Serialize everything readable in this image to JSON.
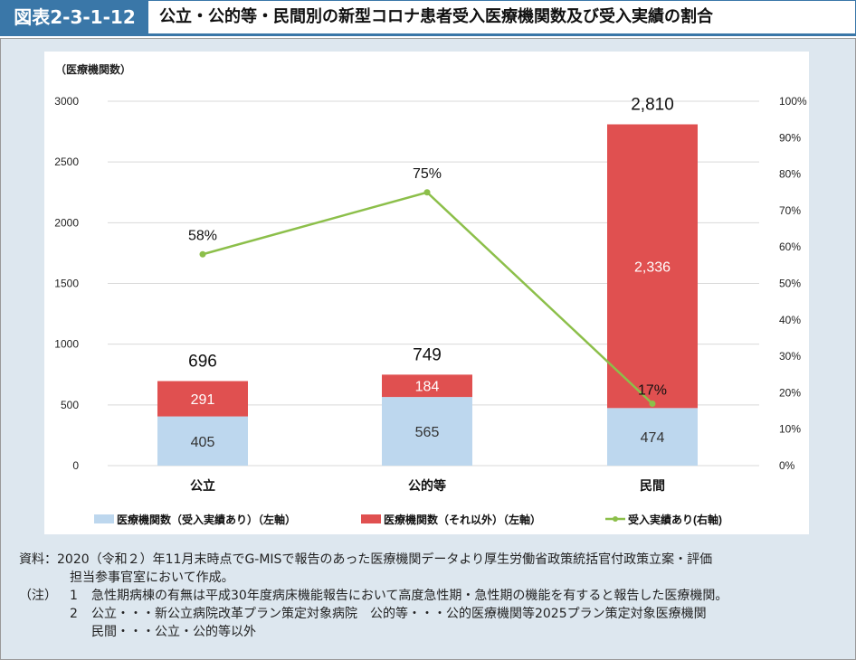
{
  "header": {
    "figure_number": "図表2-3-1-12",
    "title": "公立・公的等・民間別の新型コロナ患者受入医療機関数及び受入実績の割合"
  },
  "chart_data": {
    "type": "bar",
    "stacked": true,
    "ylabel": "（医療機関数）",
    "categories": [
      "公立",
      "公的等",
      "民間"
    ],
    "ylim": [
      0,
      3000
    ],
    "yticks": [
      "0",
      "500",
      "1000",
      "1500",
      "2000",
      "2500",
      "3000"
    ],
    "y2lim": [
      0,
      100
    ],
    "y2ticks": [
      "0%",
      "10%",
      "20%",
      "30%",
      "40%",
      "50%",
      "60%",
      "70%",
      "80%",
      "90%",
      "100%"
    ],
    "series": [
      {
        "name": "医療機関数（受入実績あり）（左軸）",
        "type": "bar",
        "color": "#bdd7ee",
        "values": [
          405,
          565,
          474
        ],
        "labels": [
          "405",
          "565",
          "474"
        ]
      },
      {
        "name": "医療機関数（それ以外）（左軸）",
        "type": "bar",
        "color": "#e05050",
        "values": [
          291,
          184,
          2336
        ],
        "labels": [
          "291",
          "184",
          "2,336"
        ]
      },
      {
        "name": "受入実績あり(右軸)",
        "type": "line",
        "axis": "right",
        "color": "#8cbf4a",
        "values": [
          58,
          75,
          17
        ],
        "labels": [
          "58%",
          "75%",
          "17%"
        ]
      }
    ],
    "totals": [
      "696",
      "749",
      "2,810"
    ],
    "legend": "bottom"
  },
  "notes": {
    "source_label": "資料：",
    "source_line1": "2020（令和２）年11月末時点でG-MISで報告のあった医療機関データより厚生労働省政策統括官付政策立案・評価",
    "source_line2": "担当参事官室において作成。",
    "note_label": "（注）",
    "note1_num": "1",
    "note1": "急性期病棟の有無は平成30年度病床機能報告において高度急性期・急性期の機能を有すると報告した医療機関。",
    "note2_num": "2",
    "note2_line1": "公立・・・新公立病院改革プラン策定対象病院　公的等・・・公的医療機関等2025プラン策定対象医療機関",
    "note2_line2": "民間・・・公立・公的等以外"
  }
}
